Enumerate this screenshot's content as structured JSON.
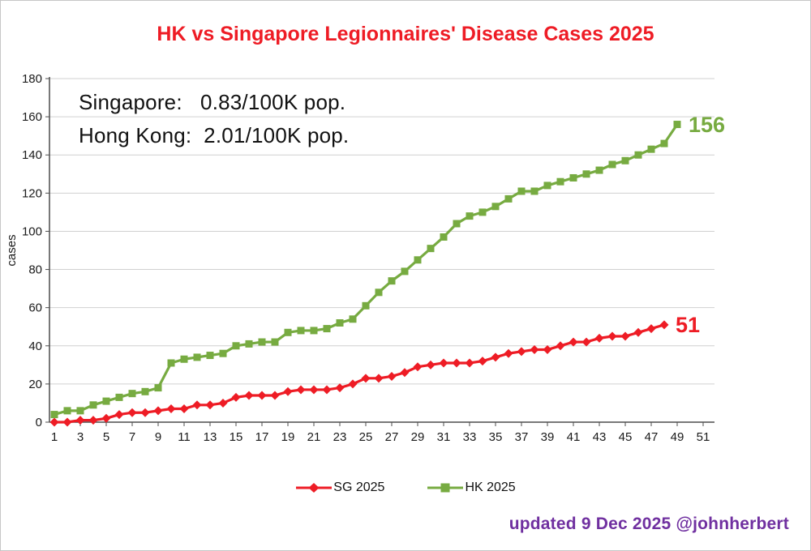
{
  "title": {
    "text": "HK vs Singapore Legionnaires' Disease Cases 2025",
    "color": "#ee1c25"
  },
  "annotations": {
    "sg_rate": "Singapore:   0.83/100K pop.",
    "hk_rate": "Hong Kong:  2.01/100K pop."
  },
  "end_labels": {
    "hk": "156",
    "sg": "51"
  },
  "footer": {
    "text": "updated  9 Dec 2025 @johnherbert",
    "color": "#7030a0"
  },
  "chart_data": {
    "type": "line",
    "title": "HK vs Singapore Legionnaires' Disease Cases 2025",
    "xlabel": "",
    "ylabel": "cases",
    "ylim": [
      0,
      180
    ],
    "ytick_step": 20,
    "xticks": [
      1,
      3,
      5,
      7,
      9,
      11,
      13,
      15,
      17,
      19,
      21,
      23,
      25,
      27,
      29,
      31,
      33,
      35,
      37,
      39,
      41,
      43,
      45,
      47,
      49,
      51
    ],
    "grid": true,
    "legend_position": "bottom",
    "axis_color": "#4d4d4d",
    "grid_color": "#d0d0d0",
    "series": [
      {
        "name": "SG 2025",
        "color": "#ee1c25",
        "marker": "diamond",
        "x": [
          1,
          2,
          3,
          4,
          5,
          6,
          7,
          8,
          9,
          10,
          11,
          12,
          13,
          14,
          15,
          16,
          17,
          18,
          19,
          20,
          21,
          22,
          23,
          24,
          25,
          26,
          27,
          28,
          29,
          30,
          31,
          32,
          33,
          34,
          35,
          36,
          37,
          38,
          39,
          40,
          41,
          42,
          43,
          44,
          45,
          46,
          47,
          48
        ],
        "values": [
          0,
          0,
          1,
          1,
          2,
          4,
          5,
          5,
          6,
          7,
          7,
          9,
          9,
          10,
          13,
          14,
          14,
          14,
          16,
          17,
          17,
          17,
          18,
          20,
          23,
          23,
          24,
          26,
          29,
          30,
          31,
          31,
          31,
          32,
          34,
          36,
          37,
          38,
          38,
          40,
          42,
          42,
          44,
          45,
          45,
          47,
          49,
          51
        ]
      },
      {
        "name": "HK 2025",
        "color": "#77ab41",
        "marker": "square",
        "x": [
          1,
          2,
          3,
          4,
          5,
          6,
          7,
          8,
          9,
          10,
          11,
          12,
          13,
          14,
          15,
          16,
          17,
          18,
          19,
          20,
          21,
          22,
          23,
          24,
          25,
          26,
          27,
          28,
          29,
          30,
          31,
          32,
          33,
          34,
          35,
          36,
          37,
          38,
          39,
          40,
          41,
          42,
          43,
          44,
          45,
          46,
          47,
          48,
          49
        ],
        "values": [
          4,
          6,
          6,
          9,
          11,
          13,
          15,
          16,
          18,
          31,
          33,
          34,
          35,
          36,
          40,
          41,
          42,
          42,
          47,
          48,
          48,
          49,
          52,
          54,
          61,
          68,
          74,
          79,
          85,
          91,
          97,
          104,
          108,
          110,
          113,
          117,
          121,
          121,
          124,
          126,
          128,
          130,
          132,
          135,
          137,
          140,
          143,
          146,
          156
        ]
      }
    ]
  }
}
